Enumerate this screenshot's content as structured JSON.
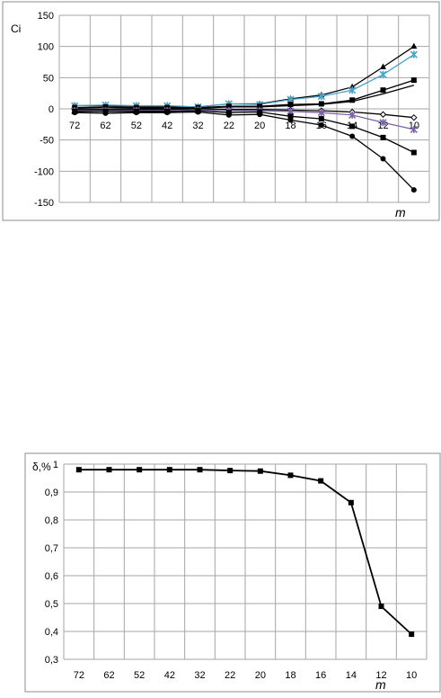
{
  "chart_data": [
    {
      "type": "line",
      "ylabel": "Ci",
      "xlabel": "m",
      "categories": [
        "72",
        "62",
        "52",
        "42",
        "32",
        "22",
        "20",
        "18",
        "16",
        "14",
        "12",
        "10"
      ],
      "ylim": [
        -150,
        150
      ],
      "yticks": [
        150,
        100,
        50,
        0,
        -50,
        -100,
        -150
      ],
      "grid": true,
      "series": [
        {
          "marker": "triangle",
          "color": "#000000",
          "values": [
            5,
            5,
            4,
            4,
            3,
            8,
            8,
            16,
            22,
            35,
            67,
            100
          ]
        },
        {
          "marker": "x",
          "color": "#4aa3c8",
          "values": [
            5,
            6,
            5,
            5,
            3,
            8,
            7,
            15,
            20,
            30,
            55,
            87
          ]
        },
        {
          "marker": "square",
          "color": "#000000",
          "values": [
            2,
            3,
            2,
            2,
            2,
            4,
            4,
            7,
            8,
            14,
            30,
            46
          ]
        },
        {
          "marker": "none",
          "color": "#000000",
          "values": [
            1,
            2,
            1,
            1,
            1,
            3,
            3,
            5,
            7,
            12,
            24,
            38
          ]
        },
        {
          "marker": "diamond",
          "color": "#000000",
          "values": [
            -1,
            -1,
            -1,
            -1,
            0,
            -1,
            -1,
            -2,
            -3,
            -5,
            -9,
            -14
          ]
        },
        {
          "marker": "x",
          "color": "#7b64a8",
          "values": [
            -3,
            -3,
            -3,
            -3,
            -2,
            -3,
            -3,
            -4,
            -6,
            -10,
            -22,
            -33
          ]
        },
        {
          "marker": "square",
          "color": "#000000",
          "values": [
            -4,
            -4,
            -4,
            -4,
            -3,
            -6,
            -5,
            -12,
            -16,
            -28,
            -46,
            -70
          ]
        },
        {
          "marker": "circle",
          "color": "#000000",
          "values": [
            -6,
            -7,
            -6,
            -6,
            -5,
            -10,
            -9,
            -18,
            -26,
            -44,
            -80,
            -130
          ]
        }
      ]
    },
    {
      "type": "line",
      "ylabel": "δ,%",
      "xlabel": "m",
      "categories": [
        "72",
        "62",
        "52",
        "42",
        "32",
        "22",
        "20",
        "18",
        "16",
        "14",
        "12",
        "10"
      ],
      "ylim": [
        0.3,
        1
      ],
      "ytick_labels": [
        "1",
        "0,9",
        "0,8",
        "0,7",
        "0,6",
        "0,5",
        "0,4",
        "0,3"
      ],
      "yticks": [
        1,
        0.9,
        0.8,
        0.7,
        0.6,
        0.5,
        0.4,
        0.3
      ],
      "grid": true,
      "series": [
        {
          "marker": "square",
          "color": "#000000",
          "values": [
            0.98,
            0.98,
            0.98,
            0.98,
            0.98,
            0.977,
            0.975,
            0.96,
            0.94,
            0.862,
            0.49,
            0.39
          ]
        }
      ]
    }
  ]
}
